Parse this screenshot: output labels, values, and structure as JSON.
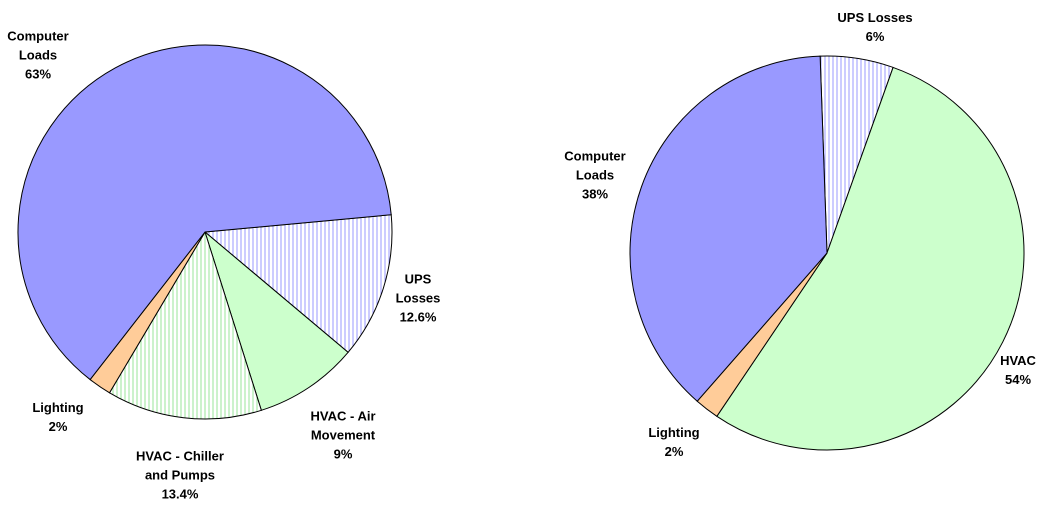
{
  "chart_data": [
    {
      "type": "pie",
      "categories": [
        "UPS Losses",
        "HVAC - Air Movement",
        "HVAC - Chiller and Pumps",
        "Lighting",
        "Computer Loads"
      ],
      "values": [
        12.6,
        9,
        13.4,
        2,
        63
      ],
      "value_labels": [
        "12.6%",
        "9%",
        "13.4%",
        "2%",
        "63%"
      ],
      "colors": [
        "#9999ff",
        "#ccffcc",
        "#99e699",
        "#ffcc99",
        "#9999ff"
      ],
      "hatched": [
        true,
        false,
        true,
        false,
        false
      ]
    },
    {
      "type": "pie",
      "categories": [
        "UPS Losses",
        "HVAC",
        "Lighting",
        "Computer Loads"
      ],
      "values": [
        6,
        54,
        2,
        38
      ],
      "value_labels": [
        "6%",
        "54%",
        "2%",
        "38%"
      ],
      "colors": [
        "#9999ff",
        "#ccffcc",
        "#ffcc99",
        "#9999ff"
      ],
      "hatched": [
        true,
        false,
        false,
        false
      ]
    }
  ]
}
